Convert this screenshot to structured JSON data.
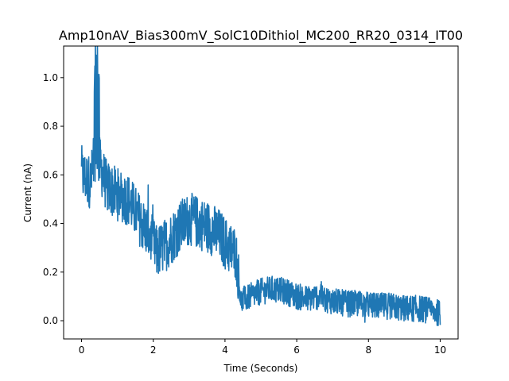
{
  "chart_data": {
    "type": "line",
    "title": "Amp10nAV_Bias300mV_SolC10Dithiol_MC200_RR20_0314_IT00",
    "xlabel": "Time (Seconds)",
    "ylabel": "Current (nA)",
    "xlim": [
      -0.5,
      10.5
    ],
    "ylim": [
      -0.075,
      1.13
    ],
    "xticks": [
      0,
      2,
      4,
      6,
      8,
      10
    ],
    "yticks": [
      0.0,
      0.2,
      0.4,
      0.6,
      0.8,
      1.0
    ],
    "xtick_labels": [
      "0",
      "2",
      "4",
      "6",
      "8",
      "10"
    ],
    "ytick_labels": [
      "0.0",
      "0.2",
      "0.4",
      "0.6",
      "0.8",
      "1.0"
    ],
    "grid": false,
    "series": [
      {
        "color": "#1f77b4",
        "x": [
          0.0,
          0.25,
          0.4,
          0.7,
          1.0,
          1.3,
          1.6,
          1.9,
          2.1,
          2.4,
          2.7,
          3.0,
          3.3,
          3.6,
          3.85,
          4.1,
          4.3,
          4.45,
          4.7,
          5.0,
          5.3,
          5.7,
          6.0,
          6.3,
          6.6,
          7.0,
          7.4,
          7.8,
          8.2,
          8.6,
          9.0,
          9.4,
          9.8,
          10.0
        ],
        "values": [
          0.6,
          0.57,
          0.7,
          0.55,
          0.52,
          0.5,
          0.42,
          0.35,
          0.28,
          0.32,
          0.38,
          0.42,
          0.4,
          0.38,
          0.35,
          0.3,
          0.28,
          0.08,
          0.1,
          0.12,
          0.13,
          0.12,
          0.1,
          0.09,
          0.1,
          0.08,
          0.07,
          0.07,
          0.06,
          0.06,
          0.05,
          0.05,
          0.04,
          0.03
        ]
      }
    ]
  }
}
